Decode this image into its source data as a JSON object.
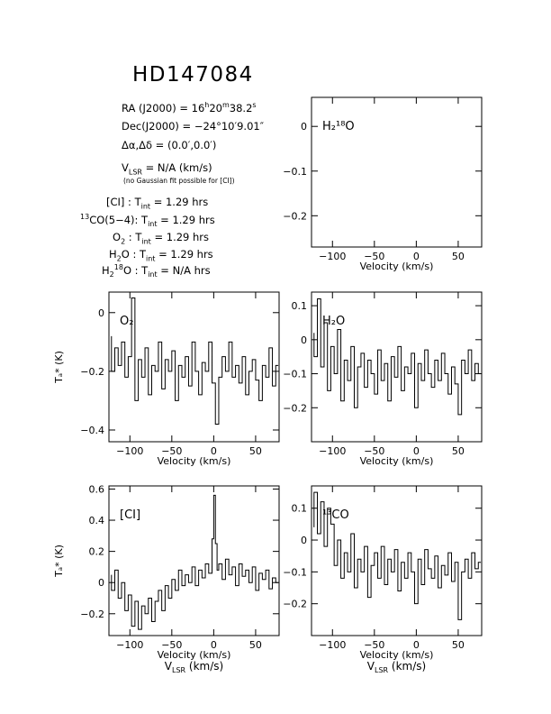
{
  "header": {
    "title": "HD147084",
    "ra": {
      "label": "RA (J2000) =",
      "h": "16",
      "m": "20",
      "s": "38.2"
    },
    "dec": {
      "label": "Dec(J2000) =",
      "value": "−24°10′9.01″"
    },
    "offset": {
      "label": "Δα,Δδ =",
      "value": "(0.0′,0.0′)"
    },
    "vlsr": {
      "label": "V",
      "sub": "LSR",
      "value": "= N/A  (km/s)"
    },
    "note": "(no Gaussian fit possible for [CI])",
    "integrations": [
      {
        "label": "[CI] : T",
        "sub": "int",
        "value": "= 1.29 hrs"
      },
      {
        "label": "CO(5−4): T",
        "pre_sup": "13",
        "sub": "int",
        "value": "= 1.29 hrs"
      },
      {
        "label": "O",
        "sub_mol": "2",
        "rest": " : T",
        "sub": "int",
        "value": "= 1.29 hrs"
      },
      {
        "label": "H",
        "sub_mol": "2",
        "rest": "O : T",
        "sub": "int",
        "value": "= 1.29 hrs"
      },
      {
        "label": "H",
        "sub_mol": "2",
        "sup_mol": "18",
        "rest": "O : T",
        "sub": "int",
        "value": "= N/A hrs"
      }
    ]
  },
  "chart_data": [
    {
      "type": "line",
      "name": "H2-18O",
      "label": "H₂¹⁸O",
      "xlim": [
        -125,
        78
      ],
      "ylim": [
        -0.27,
        0.065
      ],
      "xticks": [
        -100,
        -50,
        0,
        50
      ],
      "yticks": [
        0,
        -0.1,
        -0.2
      ],
      "ytick_labels": [
        "0",
        "−0.1",
        "−0.2"
      ],
      "xlabel": "Velocity (km/s)",
      "ylabel": "",
      "bottom_label": "",
      "x": [],
      "y": []
    },
    {
      "type": "line",
      "name": "O2",
      "label": "O₂",
      "xlim": [
        -125,
        78
      ],
      "ylim": [
        -0.44,
        0.07
      ],
      "xticks": [
        -100,
        -50,
        0,
        50
      ],
      "yticks": [
        0,
        -0.2,
        -0.4
      ],
      "ytick_labels": [
        "0",
        "−0.2",
        "−0.4"
      ],
      "xlabel": "Velocity (km/s)",
      "ylabel": "Tₐ* (K)",
      "bottom_label": "",
      "x": [
        -122,
        -118,
        -114,
        -110,
        -106,
        -102,
        -98,
        -94,
        -90,
        -86,
        -82,
        -78,
        -74,
        -70,
        -66,
        -62,
        -58,
        -54,
        -50,
        -46,
        -42,
        -38,
        -34,
        -30,
        -26,
        -22,
        -18,
        -14,
        -10,
        -6,
        -2,
        2,
        6,
        10,
        14,
        18,
        22,
        26,
        30,
        34,
        38,
        42,
        46,
        50,
        54,
        58,
        62,
        66,
        70,
        74,
        77
      ],
      "y": [
        -0.08,
        -0.2,
        -0.12,
        -0.18,
        -0.1,
        -0.22,
        -0.15,
        0.05,
        -0.3,
        -0.16,
        -0.22,
        -0.12,
        -0.28,
        -0.18,
        -0.2,
        -0.1,
        -0.26,
        -0.16,
        -0.2,
        -0.13,
        -0.3,
        -0.18,
        -0.22,
        -0.15,
        -0.25,
        -0.1,
        -0.2,
        -0.28,
        -0.17,
        -0.2,
        -0.1,
        -0.24,
        -0.38,
        -0.22,
        -0.15,
        -0.2,
        -0.1,
        -0.22,
        -0.18,
        -0.24,
        -0.15,
        -0.28,
        -0.2,
        -0.16,
        -0.23,
        -0.3,
        -0.18,
        -0.22,
        -0.12,
        -0.25,
        -0.18
      ]
    },
    {
      "type": "line",
      "name": "H2O",
      "label": "H₂O",
      "xlim": [
        -125,
        78
      ],
      "ylim": [
        -0.3,
        0.14
      ],
      "xticks": [
        -100,
        -50,
        0,
        50
      ],
      "yticks": [
        0.1,
        0,
        -0.1,
        -0.2
      ],
      "ytick_labels": [
        "0.1",
        "0",
        "−0.1",
        "−0.2"
      ],
      "xlabel": "Velocity (km/s)",
      "ylabel": "",
      "bottom_label": "",
      "x": [
        -122,
        -118,
        -114,
        -110,
        -106,
        -102,
        -98,
        -94,
        -90,
        -86,
        -82,
        -78,
        -74,
        -70,
        -66,
        -62,
        -58,
        -54,
        -50,
        -46,
        -42,
        -38,
        -34,
        -30,
        -26,
        -22,
        -18,
        -14,
        -10,
        -6,
        -2,
        2,
        6,
        10,
        14,
        18,
        22,
        26,
        30,
        34,
        38,
        42,
        46,
        50,
        54,
        58,
        62,
        66,
        70,
        74,
        77
      ],
      "y": [
        0.02,
        -0.05,
        0.12,
        -0.08,
        0.05,
        -0.15,
        -0.02,
        -0.1,
        0.03,
        -0.18,
        -0.06,
        -0.12,
        -0.02,
        -0.2,
        -0.08,
        -0.04,
        -0.14,
        -0.06,
        -0.1,
        -0.16,
        -0.03,
        -0.12,
        -0.07,
        -0.18,
        -0.05,
        -0.11,
        -0.02,
        -0.15,
        -0.08,
        -0.1,
        -0.04,
        -0.2,
        -0.07,
        -0.12,
        -0.03,
        -0.1,
        -0.14,
        -0.06,
        -0.12,
        -0.04,
        -0.1,
        -0.16,
        -0.08,
        -0.13,
        -0.22,
        -0.06,
        -0.1,
        -0.03,
        -0.12,
        -0.07,
        -0.1
      ]
    },
    {
      "type": "line",
      "name": "CI",
      "label": "[CI]",
      "xlim": [
        -125,
        78
      ],
      "ylim": [
        -0.34,
        0.62
      ],
      "xticks": [
        -100,
        -50,
        0,
        50
      ],
      "yticks": [
        0.6,
        0.4,
        0.2,
        0,
        -0.2
      ],
      "ytick_labels": [
        "0.6",
        "0.4",
        "0.2",
        "0",
        "−0.2"
      ],
      "xlabel": "Velocity (km/s)",
      "ylabel": "Tₐ* (K)",
      "bottom_label": "V",
      "bottom_label_sub": "LSR",
      "bottom_label_rest": " (km/s)",
      "x": [
        -122,
        -118,
        -114,
        -110,
        -106,
        -102,
        -98,
        -94,
        -90,
        -86,
        -82,
        -78,
        -74,
        -70,
        -66,
        -62,
        -58,
        -54,
        -50,
        -46,
        -42,
        -38,
        -34,
        -30,
        -26,
        -22,
        -18,
        -14,
        -10,
        -6,
        -2,
        0,
        2,
        4,
        6,
        10,
        14,
        18,
        22,
        26,
        30,
        34,
        38,
        42,
        46,
        50,
        54,
        58,
        62,
        66,
        70,
        74,
        77
      ],
      "y": [
        0.05,
        -0.05,
        0.08,
        -0.1,
        0.0,
        -0.18,
        -0.08,
        -0.28,
        -0.12,
        -0.3,
        -0.15,
        -0.2,
        -0.1,
        -0.25,
        -0.12,
        -0.05,
        -0.18,
        -0.02,
        -0.1,
        0.02,
        -0.05,
        0.08,
        -0.02,
        0.05,
        0.0,
        0.1,
        -0.02,
        0.08,
        0.03,
        0.12,
        0.06,
        0.28,
        0.56,
        0.25,
        0.08,
        0.12,
        0.02,
        0.15,
        0.05,
        0.1,
        -0.02,
        0.12,
        0.04,
        0.08,
        0.0,
        0.1,
        -0.05,
        0.06,
        0.02,
        0.08,
        -0.04,
        0.03,
        0.0
      ]
    },
    {
      "type": "line",
      "name": "13CO",
      "label": "¹³CO",
      "xlim": [
        -125,
        78
      ],
      "ylim": [
        -0.3,
        0.17
      ],
      "xticks": [
        -100,
        -50,
        0,
        50
      ],
      "yticks": [
        0.1,
        0,
        -0.1,
        -0.2
      ],
      "ytick_labels": [
        "0.1",
        "0",
        "−0.1",
        "−0.2"
      ],
      "xlabel": "Velocity (km/s)",
      "ylabel": "",
      "bottom_label": "V",
      "bottom_label_sub": "LSR",
      "bottom_label_rest": " (km/s)",
      "x": [
        -122,
        -118,
        -114,
        -110,
        -106,
        -102,
        -98,
        -94,
        -90,
        -86,
        -82,
        -78,
        -74,
        -70,
        -66,
        -62,
        -58,
        -54,
        -50,
        -46,
        -42,
        -38,
        -34,
        -30,
        -26,
        -22,
        -18,
        -14,
        -10,
        -6,
        -2,
        2,
        6,
        10,
        14,
        18,
        22,
        26,
        30,
        34,
        38,
        42,
        46,
        50,
        54,
        58,
        62,
        66,
        70,
        74,
        77
      ],
      "y": [
        0.04,
        0.15,
        0.02,
        0.12,
        -0.02,
        0.1,
        0.05,
        -0.08,
        0.0,
        -0.12,
        -0.04,
        -0.1,
        0.02,
        -0.15,
        -0.06,
        -0.1,
        -0.02,
        -0.18,
        -0.08,
        -0.04,
        -0.12,
        -0.02,
        -0.14,
        -0.06,
        -0.1,
        -0.03,
        -0.16,
        -0.07,
        -0.12,
        -0.04,
        -0.1,
        -0.2,
        -0.06,
        -0.14,
        -0.03,
        -0.09,
        -0.12,
        -0.05,
        -0.15,
        -0.08,
        -0.11,
        -0.04,
        -0.13,
        -0.07,
        -0.25,
        -0.1,
        -0.06,
        -0.12,
        -0.04,
        -0.09,
        -0.07
      ]
    }
  ]
}
